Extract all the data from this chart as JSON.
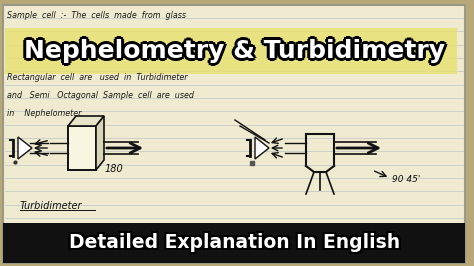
{
  "bg_color": "#b8a878",
  "notebook_bg": "#f0ead0",
  "notebook_line_color": "#c0c8c8",
  "title_text": "Nephelometry & Turbidimetry",
  "title_color": "#ffffff",
  "title_stroke_color": "#000000",
  "title_highlight": "#e8e070",
  "subtitle_text": "Detailed Explanation In English",
  "subtitle_color": "#ffffff",
  "subtitle_bg": "#111111",
  "hw_lines": [
    "Sample  cell  :-  The  cells  made  from  glass",
    "Rectangular  cell  are   used  in  Turbidimeter",
    "and   Semi   Octagonal  Sample  cell  are  used",
    "in    Nephelometer."
  ],
  "label_turbidimeter": "Turbidimeter",
  "label_angle": "→ 90 45'",
  "label_180": "180",
  "figsize": [
    4.74,
    2.66
  ],
  "dpi": 100
}
